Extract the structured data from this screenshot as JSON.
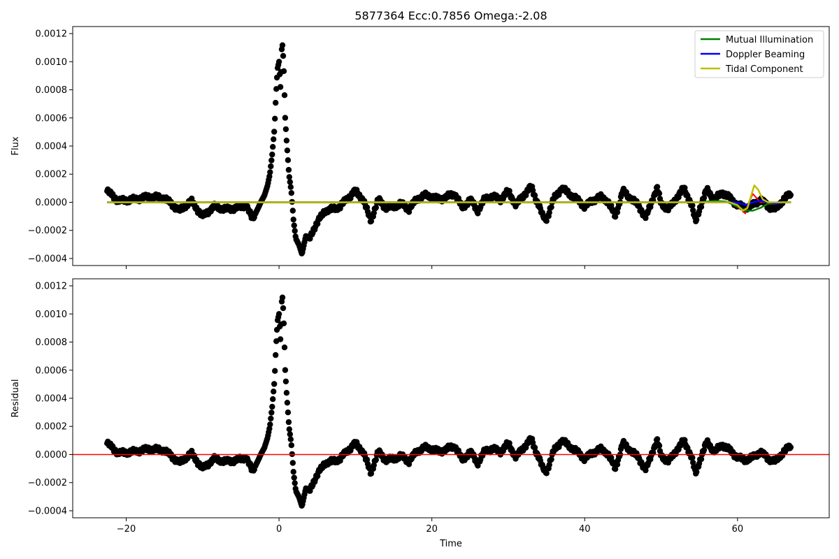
{
  "chart_data": [
    {
      "type": "scatter",
      "title": "5877364    Ecc:0.7856  Omega:-2.08",
      "xlabel": "",
      "ylabel": "Flux",
      "xlim": [
        -27,
        72
      ],
      "ylim": [
        -0.00045,
        0.00125
      ],
      "x_ticks": [
        -20,
        0,
        20,
        40,
        60
      ],
      "x_ticklabels_visible": false,
      "y_ticks": [
        -0.0004,
        -0.0002,
        0.0,
        0.0002,
        0.0004,
        0.0006,
        0.0008,
        0.001,
        0.0012
      ],
      "y_ticklabels": [
        "−0.0004",
        "−0.0002",
        "0.0000",
        "0.0002",
        "0.0004",
        "0.0006",
        "0.0008",
        "0.0010",
        "0.0012"
      ],
      "grid": false,
      "legend_position": "top-right",
      "x_range": [
        -22.5,
        67.0
      ],
      "points": {
        "name": "",
        "color": "#000000",
        "x": [
          -22.5,
          -21,
          -19,
          -17,
          -15,
          -13,
          -11.5,
          -10,
          -8.5,
          -7,
          -5.5,
          -4.3,
          -3.5,
          -2.9,
          -2.3,
          -1.9,
          -1.5,
          -1.2,
          -0.9,
          -0.6,
          -0.4,
          -0.2,
          0.0,
          0.2,
          0.4,
          0.6,
          0.8,
          1.0,
          1.3,
          1.6,
          1.9,
          2.2,
          2.6,
          3.0,
          3.5,
          4.0,
          4.6,
          5.3,
          6.0,
          7.0,
          8.0,
          9.0,
          10.0,
          11.0,
          12.0,
          13.0,
          14.0,
          15.0,
          16.0,
          17.0,
          18.0,
          19.0,
          20.0,
          21.0,
          22.0,
          23.0,
          24.0,
          25.0,
          26.0,
          27.0,
          28.0,
          29.0,
          30.0,
          31.0,
          32.0,
          33.0,
          33.5,
          34.0,
          34.5,
          35.0,
          36.0,
          37.0,
          38.0,
          39.0,
          40.0,
          41.0,
          42.0,
          43.0,
          44.0,
          45.0,
          46.0,
          47.0,
          48.0,
          49.0,
          49.5,
          50.0,
          51.0,
          52.0,
          53.0,
          54.0,
          54.5,
          55.0,
          56.0,
          57.0,
          58.0,
          59.0,
          60.0,
          61.0,
          62.0,
          63.0,
          64.0,
          65.0,
          66.0,
          67.0
        ],
        "y": [
          8e-05,
          1e-05,
          2e-05,
          4e-05,
          3e-05,
          -6e-05,
          1e-05,
          -0.0001,
          -3e-05,
          -5e-05,
          -4e-05,
          -2e-05,
          -0.00012,
          -6e-05,
          1e-05,
          5e-05,
          0.00012,
          0.0002,
          0.00034,
          0.00052,
          0.00077,
          0.00095,
          0.001,
          0.0008,
          0.00116,
          0.00099,
          0.00061,
          0.00043,
          0.0002,
          8e-05,
          -0.00013,
          -0.00026,
          -0.0003,
          -0.00037,
          -0.00024,
          -0.00026,
          -0.00018,
          -0.00012,
          -6e-05,
          -5e-05,
          -3e-05,
          3e-05,
          8e-05,
          2e-05,
          -0.00013,
          2e-05,
          -4e-05,
          -3e-05,
          -1e-05,
          -5e-05,
          2e-05,
          5e-05,
          4e-05,
          2e-05,
          4e-05,
          6e-05,
          -4e-05,
          2e-05,
          -6e-05,
          3e-05,
          4e-05,
          2e-05,
          8e-05,
          -2e-05,
          5e-05,
          0.00011,
          4e-05,
          -2e-05,
          -0.0001,
          -0.00012,
          3e-05,
          0.0001,
          6e-05,
          2e-05,
          -3e-05,
          1e-05,
          4e-05,
          1e-05,
          -0.0001,
          8e-05,
          3e-05,
          -2e-05,
          -0.00011,
          4e-05,
          0.0001,
          -1e-05,
          -5e-05,
          3e-05,
          0.0001,
          -2e-05,
          -0.00014,
          -5e-05,
          9e-05,
          2e-05,
          7e-05,
          3e-05,
          -2e-05,
          -4e-05,
          -2e-05,
          2e-05,
          -3e-05,
          -5e-05,
          2e-05,
          6e-05
        ]
      },
      "series": [
        {
          "name": "Mutual Illumination",
          "color": "#008000",
          "x": [
            -22.5,
            55,
            57,
            58.5,
            60,
            61,
            62,
            63,
            64,
            65,
            66,
            67
          ],
          "y": [
            0.0,
            0.0,
            1e-05,
            5e-06,
            -3e-05,
            -6e-05,
            -6e-05,
            -4e-05,
            -1e-05,
            -1e-05,
            0.0,
            0.0
          ]
        },
        {
          "name": "Doppler Beaming",
          "color": "#0000ff",
          "x": [
            -22.5,
            58,
            59.5,
            60.5,
            61.2,
            62,
            63,
            64,
            65,
            66,
            67
          ],
          "y": [
            0.0,
            0.0,
            0.0,
            -1e-05,
            -2e-05,
            0.0,
            1e-05,
            0.0,
            -1e-05,
            0.0,
            0.0
          ]
        },
        {
          "name": "Tidal Component",
          "color": "#bfbf00",
          "x": [
            -22.5,
            59,
            60,
            60.7,
            61.3,
            61.8,
            62.2,
            62.7,
            63.3,
            64,
            65,
            67
          ],
          "y": [
            0.0,
            0.0,
            -2e-05,
            -6e-05,
            -4e-05,
            5e-05,
            0.00012,
            9e-05,
            2e-05,
            0.0,
            0.0,
            0.0
          ]
        }
      ],
      "fit_line": {
        "name": "",
        "color": "#ff0000",
        "x": [
          59.5,
          60.5,
          61,
          61.5,
          62,
          62.5,
          63,
          64
        ],
        "y": [
          -2e-05,
          -5e-05,
          -8e-05,
          0.0,
          6e-05,
          3e-05,
          0.0,
          0.0
        ]
      }
    },
    {
      "type": "scatter",
      "title": "",
      "xlabel": "Time",
      "ylabel": "Residual",
      "xlim": [
        -27,
        72
      ],
      "ylim": [
        -0.00045,
        0.00125
      ],
      "x_ticks": [
        -20,
        0,
        20,
        40,
        60
      ],
      "x_ticklabels": [
        "−20",
        "0",
        "20",
        "40",
        "60"
      ],
      "y_ticks": [
        -0.0004,
        -0.0002,
        0.0,
        0.0002,
        0.0004,
        0.0006,
        0.0008,
        0.001,
        0.0012
      ],
      "y_ticklabels": [
        "−0.0004",
        "−0.0002",
        "0.0000",
        "0.0002",
        "0.0004",
        "0.0006",
        "0.0008",
        "0.0010",
        "0.0012"
      ],
      "grid": false,
      "reference_line": {
        "y": 0.0,
        "color": "#ff0000"
      }
    }
  ]
}
